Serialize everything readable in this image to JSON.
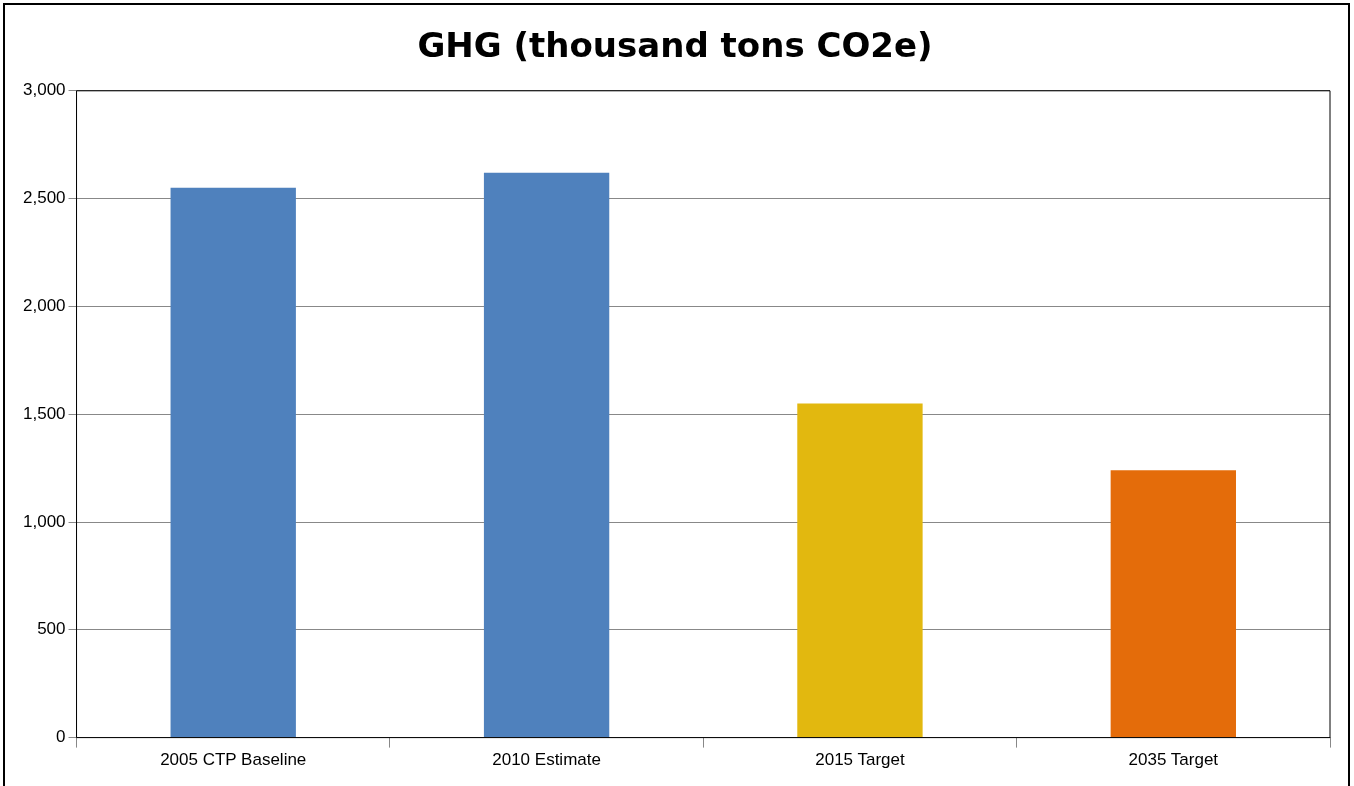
{
  "chart_data": {
    "type": "bar",
    "title": "GHG (thousand tons CO2e)",
    "categories": [
      "2005 CTP Baseline",
      "2010 Estimate",
      "2015 Target",
      "2035 Target"
    ],
    "values": [
      2550,
      2620,
      1550,
      1240
    ],
    "colors": [
      "#4f81bd",
      "#4f81bd",
      "#e2b80f",
      "#e46c0a"
    ],
    "ylim": [
      0,
      3000
    ],
    "yticks": [
      0,
      500,
      {
        "value": 1000,
        "label": "1,000"
      },
      {
        "value": 1500,
        "label": "1,500"
      },
      {
        "value": 2000,
        "label": "2,000"
      },
      {
        "value": 2500,
        "label": "2,500"
      },
      {
        "value": 3000,
        "label": "3,000"
      }
    ],
    "grid": "y",
    "legend": false
  }
}
